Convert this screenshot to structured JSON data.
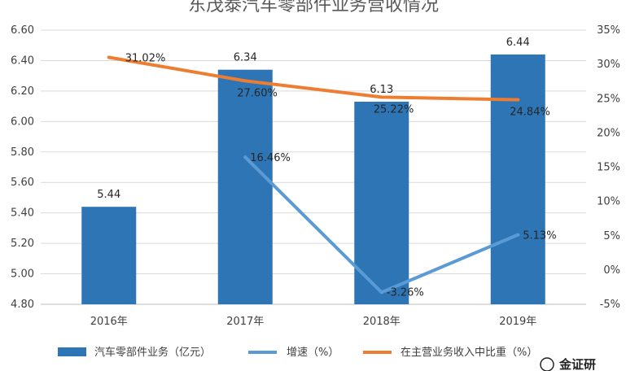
{
  "chart_data": {
    "type": "bar",
    "title": "东茂泰汽车零部件业务营收情况",
    "categories": [
      "2016年",
      "2017年",
      "2018年",
      "2019年"
    ],
    "left_axis": {
      "min": 4.8,
      "max": 6.6,
      "ticks": [
        "4.80",
        "5.00",
        "5.20",
        "5.40",
        "5.60",
        "5.80",
        "6.00",
        "6.20",
        "6.40",
        "6.60"
      ],
      "tick_values": [
        4.8,
        5.0,
        5.2,
        5.4,
        5.6,
        5.8,
        6.0,
        6.2,
        6.4,
        6.6
      ]
    },
    "right_axis": {
      "min": -5,
      "max": 35,
      "ticks": [
        "-5%",
        "0%",
        "5%",
        "10%",
        "15%",
        "20%",
        "25%",
        "30%",
        "35%"
      ],
      "tick_values": [
        -5,
        0,
        5,
        10,
        15,
        20,
        25,
        30,
        35
      ]
    },
    "series": [
      {
        "name": "汽车零部件业务（亿元）",
        "type": "bar",
        "axis": "left",
        "color": "#2E75B6",
        "values": [
          5.44,
          6.34,
          6.13,
          6.44
        ],
        "labels": [
          "5.44",
          "6.34",
          "6.13",
          "6.44"
        ]
      },
      {
        "name": "增速（%）",
        "type": "line",
        "axis": "right",
        "color": "#5B9BD5",
        "values": [
          null,
          16.46,
          -3.26,
          5.13
        ],
        "labels": [
          "",
          "16.46%",
          "-3.26%",
          "5.13%"
        ]
      },
      {
        "name": "在主营业务收入中比重（%）",
        "type": "line",
        "axis": "right",
        "color": "#ED7D31",
        "values": [
          31.02,
          27.6,
          25.22,
          24.84
        ],
        "labels": [
          "31.02%",
          "27.60%",
          "25.22%",
          "24.84%"
        ]
      }
    ],
    "grid": true,
    "legend": "bottom"
  },
  "watermark": "金证研"
}
